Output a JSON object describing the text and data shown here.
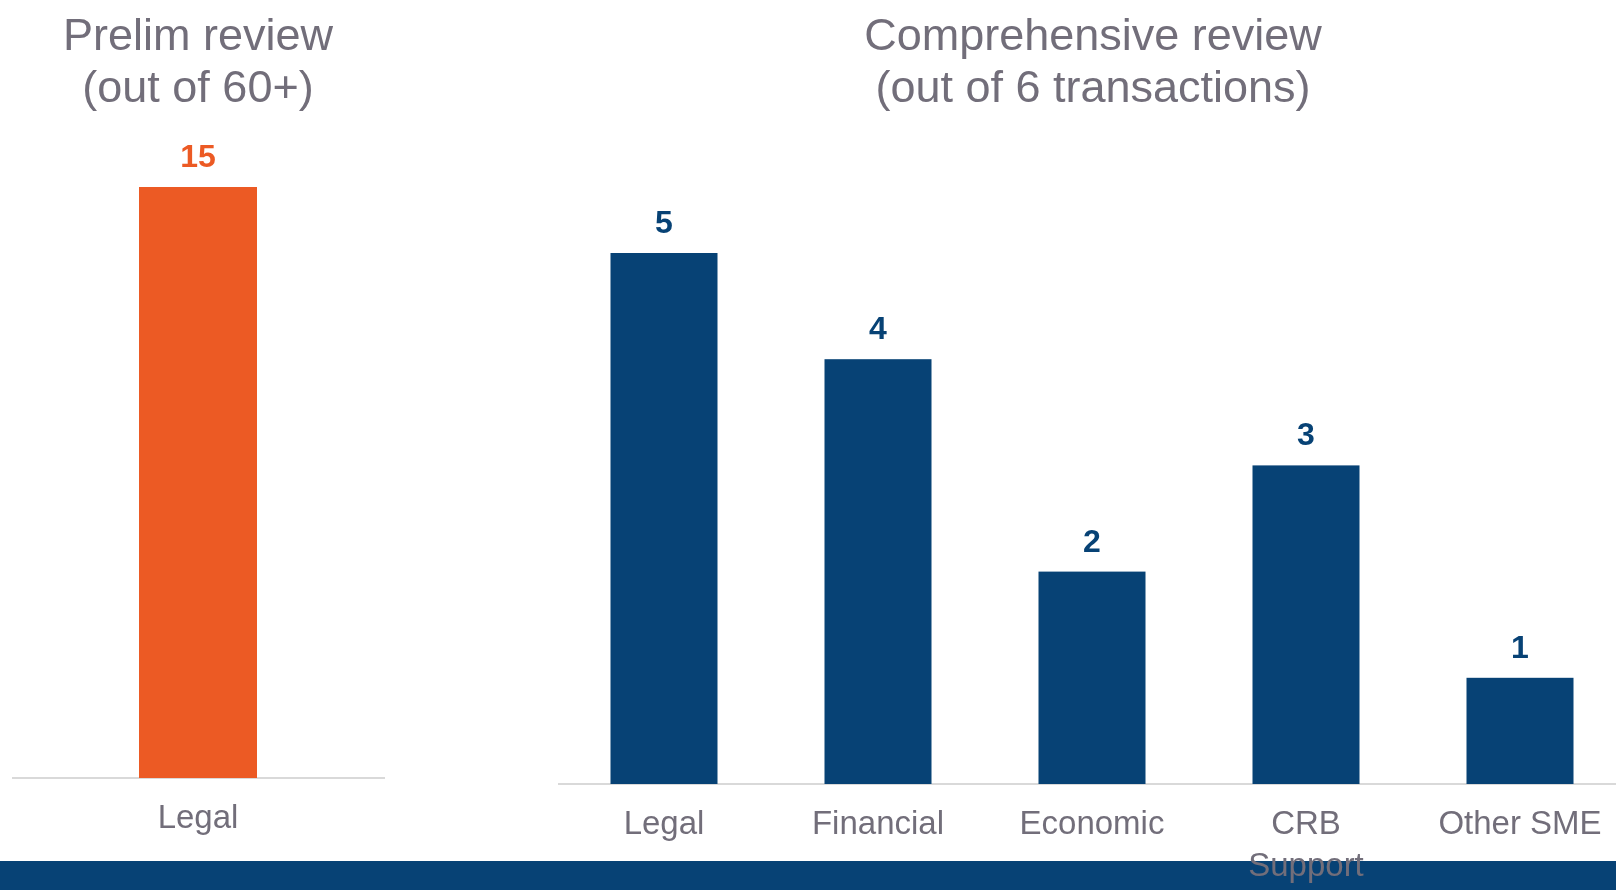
{
  "chart_data": [
    {
      "type": "bar",
      "title": "Prelim review\n(out of 60+)",
      "categories": [
        "Legal"
      ],
      "values": [
        15
      ],
      "color": "#ec5a24",
      "data_labels": true
    },
    {
      "type": "bar",
      "title": "Comprehensive review\n(out of 6 transactions)",
      "categories": [
        "Legal",
        "Financial",
        "Economic",
        "CRB Support",
        "Other SME"
      ],
      "values": [
        5,
        4,
        2,
        3,
        1
      ],
      "color": "#074275",
      "data_labels": true
    }
  ]
}
